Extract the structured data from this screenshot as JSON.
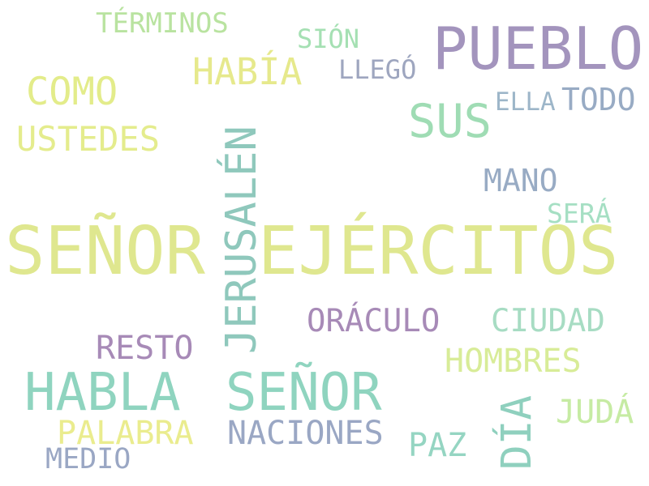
{
  "words": [
    {
      "text": "SEÑOR",
      "color": "#dfe78f"
    },
    {
      "text": "EJÉRCITOS",
      "color": "#dfe78f"
    },
    {
      "text": "PUEBLO",
      "color": "#a394bd"
    },
    {
      "text": "JERUSALÉN",
      "color": "#8fc8bc",
      "orientation": "vertical"
    },
    {
      "text": "HABLA",
      "color": "#8fd4bf"
    },
    {
      "text": "SEÑOR",
      "color": "#8fd4bf"
    },
    {
      "text": "HABÍA",
      "color": "#e6e98c"
    },
    {
      "text": "SUS",
      "color": "#9fdcb4"
    },
    {
      "text": "COMO",
      "color": "#e3ec8a"
    },
    {
      "text": "USTEDES",
      "color": "#e4ec8d"
    },
    {
      "text": "TÉRMINOS",
      "color": "#b9e3a0"
    },
    {
      "text": "SIÓN",
      "color": "#a5e0b3"
    },
    {
      "text": "LLEGÓ",
      "color": "#9ea6bf"
    },
    {
      "text": "ELLA",
      "color": "#9db6c9"
    },
    {
      "text": "TODO",
      "color": "#98abc4"
    },
    {
      "text": "MANO",
      "color": "#98abc4"
    },
    {
      "text": "SERÁ",
      "color": "#a5dfc3"
    },
    {
      "text": "ORÁCULO",
      "color": "#a78ab7"
    },
    {
      "text": "CIUDAD",
      "color": "#a7dcc3"
    },
    {
      "text": "RESTO",
      "color": "#a78ab7"
    },
    {
      "text": "HOMBRES",
      "color": "#d8ec98"
    },
    {
      "text": "DÍA",
      "color": "#8fd0be",
      "orientation": "vertical"
    },
    {
      "text": "JUDÁ",
      "color": "#c6eba3"
    },
    {
      "text": "PALABRA",
      "color": "#eaec8e"
    },
    {
      "text": "NACIONES",
      "color": "#9aa7c4"
    },
    {
      "text": "PAZ",
      "color": "#95d5c2"
    },
    {
      "text": "MEDIO",
      "color": "#9aa7c4"
    }
  ]
}
